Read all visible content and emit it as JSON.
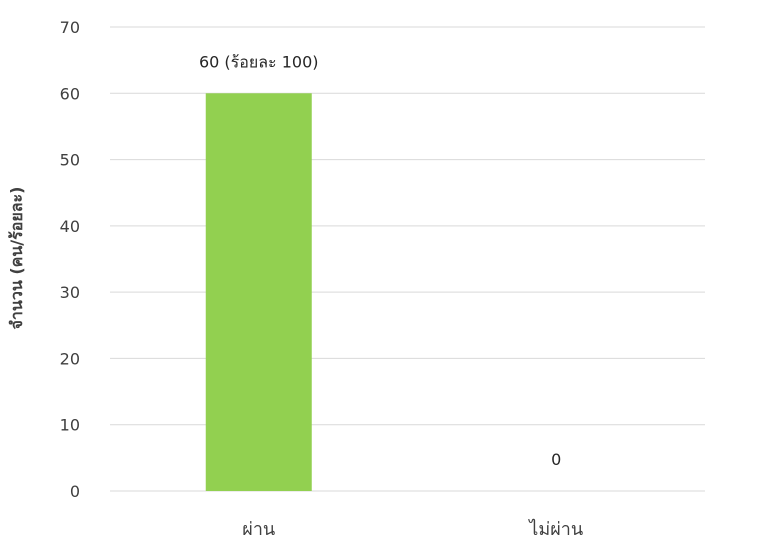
{
  "chart_data": {
    "type": "bar",
    "categories": [
      "ผ่าน",
      "ไม่ผ่าน"
    ],
    "values": [
      60,
      0
    ],
    "data_labels": [
      "60 (ร้อยละ 100)",
      "0"
    ],
    "ylabel": "จำนวน (คน/ร้อยละ)",
    "xlabel": "",
    "ylim": [
      0,
      70
    ],
    "yticks": [
      0,
      10,
      20,
      30,
      40,
      50,
      60,
      70
    ],
    "grid": true,
    "bar_color": "#92d050",
    "legend": "none"
  }
}
